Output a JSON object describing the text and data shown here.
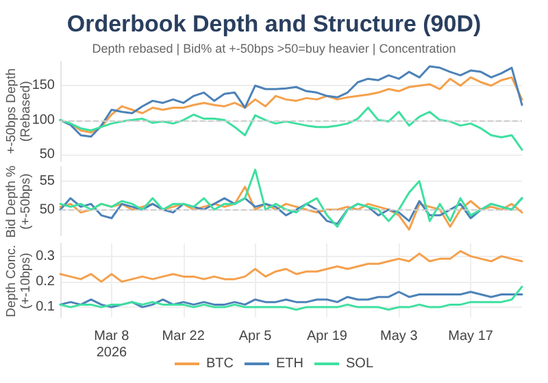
{
  "chart_data": [
    {
      "type": "line",
      "title": "Orderbook Depth and Structure (90D)",
      "subtitle": "Depth rebased | Bid% at +-50bps >50=buy heavier | Concentration",
      "ylabel": "+-50bps Depth (Rebased)",
      "categories": [
        null,
        null,
        null,
        null,
        null,
        null,
        null,
        null,
        null,
        null,
        null,
        null,
        null,
        null,
        null,
        null,
        null,
        null,
        null,
        null,
        null,
        null,
        null,
        null,
        null,
        null,
        null,
        null,
        null,
        null,
        null,
        null,
        null,
        null,
        null,
        null,
        null,
        null,
        null,
        null,
        null,
        null,
        null,
        null,
        null,
        null
      ],
      "series": [
        {
          "color": "#f5a04c",
          "values": [
            100,
            95,
            85,
            82,
            90,
            108,
            120,
            115,
            110,
            118,
            115,
            118,
            118,
            122,
            125,
            122,
            120,
            125,
            118,
            130,
            120,
            135,
            130,
            128,
            132,
            130,
            135,
            130,
            133,
            135,
            137,
            140,
            145,
            142,
            148,
            150,
            152,
            145,
            160,
            150,
            162,
            155,
            150,
            158,
            162,
            130
          ]
        },
        {
          "color": "#4c82b8",
          "values": [
            100,
            93,
            78,
            76,
            92,
            115,
            112,
            110,
            120,
            128,
            125,
            130,
            125,
            135,
            140,
            128,
            138,
            140,
            118,
            150,
            145,
            145,
            146,
            148,
            142,
            140,
            135,
            133,
            140,
            155,
            160,
            158,
            165,
            160,
            170,
            162,
            178,
            176,
            170,
            165,
            172,
            170,
            162,
            168,
            176,
            122
          ]
        },
        {
          "color": "#3ee0a0",
          "values": [
            100,
            95,
            88,
            85,
            90,
            95,
            98,
            100,
            102,
            96,
            98,
            95,
            100,
            108,
            102,
            102,
            100,
            90,
            78,
            107,
            100,
            95,
            98,
            95,
            92,
            90,
            90,
            92,
            95,
            102,
            118,
            100,
            98,
            112,
            92,
            105,
            112,
            100,
            98,
            92,
            95,
            88,
            78,
            75,
            78,
            57
          ]
        }
      ],
      "ylim": [
        40,
        185
      ],
      "yticks": [
        50,
        100,
        150
      ],
      "grid": "y",
      "tick_labels": "y",
      "ref_lines": [
        {
          "axis": "y",
          "value": 100,
          "color": "#cccccc",
          "line_style": "dashed"
        }
      ]
    },
    {
      "type": "line",
      "ylabel": "Bid Depth % (+-50bps)",
      "categories": [
        null,
        null,
        null,
        null,
        null,
        null,
        null,
        null,
        null,
        null,
        null,
        null,
        null,
        null,
        null,
        null,
        null,
        null,
        null,
        null,
        null,
        null,
        null,
        null,
        null,
        null,
        null,
        null,
        null,
        null,
        null,
        null,
        null,
        null,
        null,
        null,
        null,
        null,
        null,
        null,
        null,
        null,
        null,
        null,
        null,
        null
      ],
      "series": [
        {
          "color": "#f5a04c",
          "values": [
            50.5,
            51,
            49.5,
            50,
            51,
            50.5,
            51,
            50,
            50.5,
            51,
            50,
            50.5,
            51,
            50,
            50.5,
            51,
            50.5,
            51,
            54,
            50,
            51,
            50,
            51,
            50.5,
            50,
            49.5,
            50,
            50,
            50.5,
            50,
            51,
            50.5,
            50,
            49,
            46.5,
            51,
            50.5,
            50,
            47,
            50,
            51.5,
            50,
            50.5,
            50,
            51,
            49.5
          ]
        },
        {
          "color": "#4c82b8",
          "values": [
            50,
            52,
            50.5,
            51,
            49,
            48.5,
            51,
            50.5,
            50,
            51,
            50,
            49.5,
            51,
            50.5,
            50,
            51,
            52,
            51,
            52,
            50.5,
            51,
            50.5,
            49,
            50,
            51,
            50,
            48,
            47.5,
            50,
            51,
            50.5,
            49,
            50,
            49.5,
            48,
            51.5,
            49,
            49,
            50,
            51,
            48.5,
            50,
            51,
            50.5,
            50,
            52
          ]
        },
        {
          "color": "#3ee0a0",
          "values": [
            51,
            50.5,
            51,
            50,
            51,
            50.5,
            51.5,
            51,
            50,
            52,
            50,
            51,
            51,
            50.5,
            52,
            50,
            51,
            51,
            52,
            57,
            50,
            51,
            50,
            49.5,
            51,
            52,
            49,
            47,
            50,
            51,
            50.5,
            50,
            48,
            50,
            53,
            55,
            48,
            51,
            48,
            52,
            49,
            50,
            51,
            50.5,
            50,
            52
          ]
        }
      ],
      "ylim": [
        45.5,
        57.5
      ],
      "yticks": [
        50,
        55
      ],
      "grid": "y",
      "tick_labels": "y",
      "ref_lines": [
        {
          "axis": "y",
          "value": 50,
          "color": "#cccccc",
          "line_style": "dashed"
        }
      ]
    },
    {
      "type": "line",
      "ylabel": "Depth Conc. (+-10bps)",
      "x": [
        "2026-02-26",
        "2026-02-28",
        "2026-03-02",
        "2026-03-04",
        "2026-03-06",
        "2026-03-08",
        "2026-03-10",
        "2026-03-12",
        "2026-03-14",
        "2026-03-16",
        "2026-03-18",
        "2026-03-20",
        "2026-03-22",
        "2026-03-24",
        "2026-03-26",
        "2026-03-28",
        "2026-03-30",
        "2026-04-01",
        "2026-04-03",
        "2026-04-05",
        "2026-04-07",
        "2026-04-09",
        "2026-04-11",
        "2026-04-13",
        "2026-04-15",
        "2026-04-17",
        "2026-04-19",
        "2026-04-21",
        "2026-04-23",
        "2026-04-25",
        "2026-04-27",
        "2026-04-29",
        "2026-05-01",
        "2026-05-03",
        "2026-05-05",
        "2026-05-07",
        "2026-05-09",
        "2026-05-11",
        "2026-05-13",
        "2026-05-15",
        "2026-05-17",
        "2026-05-19",
        "2026-05-21",
        "2026-05-23",
        "2026-05-25",
        "2026-05-27"
      ],
      "series": [
        {
          "name": "BTC",
          "color": "#f5a04c",
          "values": [
            0.23,
            0.22,
            0.21,
            0.23,
            0.2,
            0.23,
            0.2,
            0.21,
            0.22,
            0.21,
            0.22,
            0.23,
            0.22,
            0.22,
            0.21,
            0.22,
            0.21,
            0.21,
            0.22,
            0.25,
            0.22,
            0.24,
            0.25,
            0.23,
            0.24,
            0.24,
            0.25,
            0.26,
            0.25,
            0.26,
            0.27,
            0.27,
            0.28,
            0.29,
            0.28,
            0.31,
            0.28,
            0.29,
            0.29,
            0.32,
            0.3,
            0.29,
            0.28,
            0.3,
            0.29,
            0.28
          ]
        },
        {
          "name": "ETH",
          "color": "#4c82b8",
          "values": [
            0.11,
            0.12,
            0.11,
            0.13,
            0.11,
            0.1,
            0.11,
            0.12,
            0.1,
            0.11,
            0.13,
            0.11,
            0.12,
            0.11,
            0.12,
            0.11,
            0.11,
            0.12,
            0.11,
            0.13,
            0.12,
            0.12,
            0.13,
            0.12,
            0.12,
            0.13,
            0.13,
            0.12,
            0.14,
            0.13,
            0.13,
            0.14,
            0.14,
            0.16,
            0.14,
            0.15,
            0.15,
            0.15,
            0.15,
            0.15,
            0.16,
            0.15,
            0.14,
            0.15,
            0.15,
            0.15
          ]
        },
        {
          "name": "SOL",
          "color": "#3ee0a0",
          "values": [
            0.11,
            0.1,
            0.11,
            0.11,
            0.1,
            0.11,
            0.11,
            0.12,
            0.11,
            0.12,
            0.11,
            0.11,
            0.11,
            0.1,
            0.11,
            0.1,
            0.1,
            0.11,
            0.1,
            0.1,
            0.1,
            0.1,
            0.1,
            0.09,
            0.1,
            0.1,
            0.1,
            0.1,
            0.11,
            0.1,
            0.1,
            0.1,
            0.09,
            0.1,
            0.1,
            0.11,
            0.1,
            0.1,
            0.11,
            0.11,
            0.12,
            0.12,
            0.12,
            0.12,
            0.13,
            0.18
          ]
        }
      ],
      "xlim": [
        "2026-02-26",
        "2026-05-27"
      ],
      "xticks": [
        {
          "value": "2026-03-08",
          "label": "Mar 8\n2026"
        },
        {
          "value": "2026-03-22",
          "label": "Mar 22"
        },
        {
          "value": "2026-04-05",
          "label": "Apr 5"
        },
        {
          "value": "2026-04-19",
          "label": "Apr 19"
        },
        {
          "value": "2026-05-03",
          "label": "May 3"
        },
        {
          "value": "2026-05-17",
          "label": "May 17"
        }
      ],
      "ylim": [
        0.06,
        0.35
      ],
      "yticks": [
        0.1,
        0.2,
        0.3
      ],
      "grid": true,
      "legend": "bottom"
    }
  ]
}
